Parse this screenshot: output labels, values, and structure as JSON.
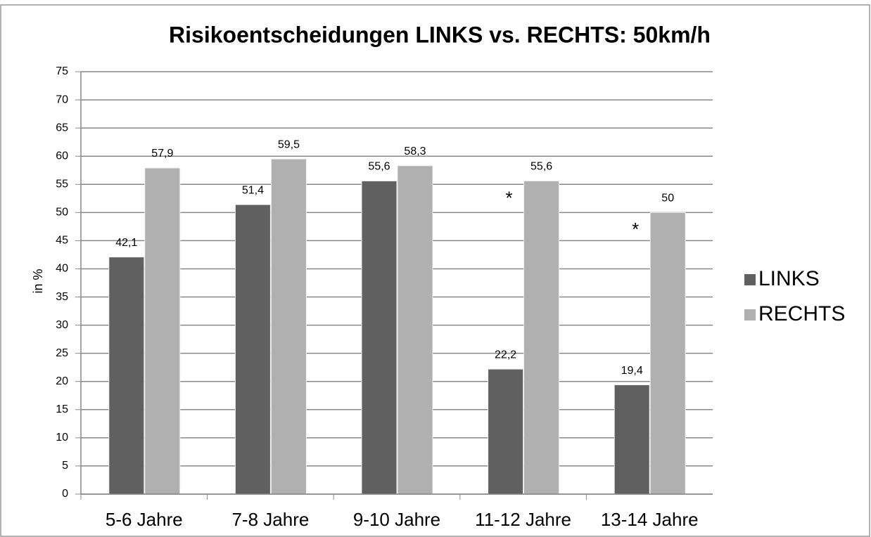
{
  "chart_data": {
    "type": "bar",
    "title": "Risikoentscheidungen LINKS vs. RECHTS: 50km/h",
    "y_label": "in %",
    "categories": [
      "5-6 Jahre",
      "7-8 Jahre",
      "9-10 Jahre",
      "11-12 Jahre",
      "13-14 Jahre"
    ],
    "series": [
      {
        "name": "LINKS",
        "color": "#606060",
        "values": [
          42.1,
          51.4,
          55.6,
          22.2,
          19.4
        ],
        "value_labels": [
          "42,1",
          "51,4",
          "55,6",
          "22,2",
          "19,4"
        ]
      },
      {
        "name": "RECHTS",
        "color": "#b0b0b0",
        "values": [
          57.9,
          59.5,
          58.3,
          55.6,
          50
        ],
        "value_labels": [
          "57,9",
          "59,5",
          "58,3",
          "55,6",
          "50"
        ]
      }
    ],
    "annotations": [
      {
        "text": "*",
        "category": "11-12 Jahre"
      },
      {
        "text": "*",
        "category": "13-14 Jahre"
      }
    ],
    "ylim": [
      0,
      75
    ],
    "yticks": [
      0,
      5,
      10,
      15,
      20,
      25,
      30,
      35,
      40,
      45,
      50,
      55,
      60,
      65,
      70,
      75
    ],
    "grid": true,
    "legend": "right"
  }
}
